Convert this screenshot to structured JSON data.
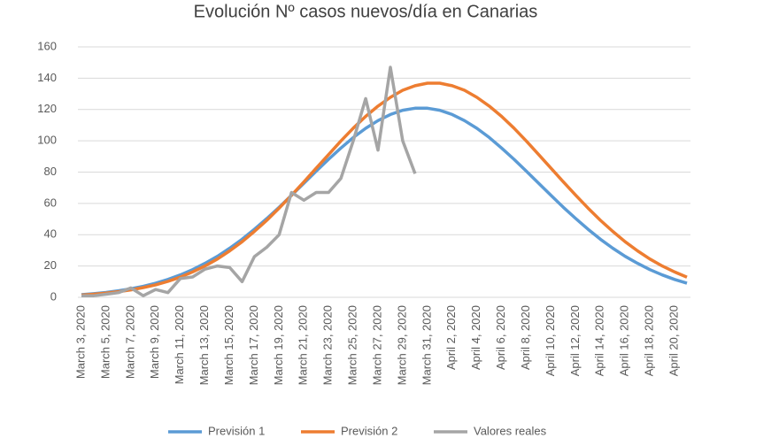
{
  "chart_data": {
    "type": "line",
    "title": "Evolución Nº casos nuevos/día en Canarias",
    "categories": [
      "March 3, 2020",
      null,
      "March 5, 2020",
      null,
      "March 7, 2020",
      null,
      "March 9, 2020",
      null,
      "March 11, 2020",
      null,
      "March 13, 2020",
      null,
      "March 15, 2020",
      null,
      "March 17, 2020",
      null,
      "March 19, 2020",
      null,
      "March 21, 2020",
      null,
      "March 23, 2020",
      null,
      "March 25, 2020",
      null,
      "March 27, 2020",
      null,
      "March 29, 2020",
      null,
      "March 31, 2020",
      null,
      "April 2, 2020",
      null,
      "April 4, 2020",
      null,
      "April 6, 2020",
      null,
      "April 8, 2020",
      null,
      "April 10, 2020",
      null,
      "April 12, 2020",
      null,
      "April 14, 2020",
      null,
      "April 16, 2020",
      null,
      "April 18, 2020",
      null,
      "April 20, 2020",
      null
    ],
    "series": [
      {
        "name": "Previsión 1",
        "color": "#5b9bd5",
        "values": [
          1.7,
          2.3,
          3.1,
          4.2,
          5.4,
          7.0,
          9.0,
          11.4,
          14.3,
          17.7,
          21.7,
          26.2,
          31.4,
          37.1,
          43.5,
          50.3,
          57.5,
          65.2,
          72.9,
          80.6,
          88.2,
          95.4,
          102.1,
          108,
          112.9,
          116.8,
          119.5,
          120.8,
          120.8,
          119.5,
          116.8,
          112.9,
          108,
          102.1,
          95.4,
          88.2,
          80.6,
          72.9,
          65.2,
          57.5,
          50.3,
          43.5,
          37.1,
          31.4,
          26.2,
          21.7,
          17.7,
          14.3,
          11.4,
          9.0
        ]
      },
      {
        "name": "Previsión 2",
        "color": "#ed7d31",
        "values": [
          1.4,
          2.0,
          2.7,
          3.6,
          4.7,
          6.2,
          8.0,
          10.2,
          12.9,
          16.2,
          20.0,
          24.5,
          29.7,
          35.5,
          42.1,
          49.2,
          57.0,
          65.2,
          73.7,
          82.5,
          91.2,
          99.9,
          108.1,
          115.6,
          122.2,
          127.8,
          132.3,
          135.2,
          136.8,
          136.8,
          135.2,
          132.3,
          127.8,
          122.2,
          115.6,
          108.1,
          99.9,
          91.2,
          82.5,
          73.7,
          65.2,
          57.0,
          49.2,
          42.1,
          35.5,
          29.7,
          24.5,
          20.0,
          16.2,
          12.9
        ]
      },
      {
        "name": "Valores reales",
        "color": "#a5a5a5",
        "values": [
          1,
          1,
          2,
          3,
          6,
          1,
          5,
          3,
          12,
          13,
          18,
          20,
          19,
          10,
          26,
          32,
          40,
          67,
          62,
          67,
          67,
          76,
          100,
          127,
          94,
          147,
          100,
          79,
          null,
          null,
          null,
          null,
          null,
          null,
          null,
          null,
          null,
          null,
          null,
          null,
          null,
          null,
          null,
          null,
          null,
          null,
          null,
          null,
          null,
          null
        ]
      }
    ],
    "ylim": [
      0,
      160
    ],
    "yticks": [
      0,
      20,
      40,
      60,
      80,
      100,
      120,
      140,
      160
    ],
    "grid": true,
    "legend": "bottom"
  }
}
